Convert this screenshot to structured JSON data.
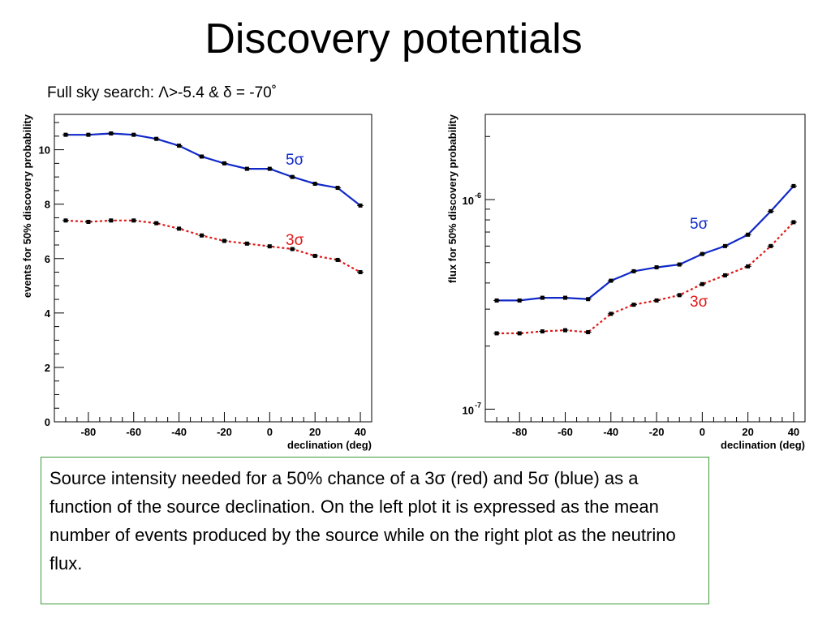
{
  "slide": {
    "title": "Discovery potentials",
    "subtitle": "Full sky search: Λ>-5.4 & δ = -70˚",
    "caption": "Source intensity needed for a 50% chance of a 3σ (red) and 5σ (blue) as a function of the source declination. On the left plot it is expressed as the mean number of events produced by the source while on the right plot as the neutrino flux."
  },
  "colors": {
    "five_sigma": "#1028c8",
    "three_sigma": "#e01818",
    "frame": "#000000",
    "caption_border": "#3a9a3a"
  },
  "chart_data": [
    {
      "type": "line",
      "xlabel": "declination (deg)",
      "ylabel": "events for 50% discovery probability",
      "xlim": [
        -95,
        45
      ],
      "ylim": [
        0,
        11.3
      ],
      "yscale": "linear",
      "x_ticks": [
        -80,
        -60,
        -40,
        -20,
        0,
        20,
        40
      ],
      "x_tick_labels": [
        "-80",
        "-60",
        "-40",
        "-20",
        "0",
        "20",
        "40"
      ],
      "y_ticks": [
        0,
        2,
        4,
        6,
        8,
        10
      ],
      "y_tick_labels": [
        "0",
        "2",
        "4",
        "6",
        "8",
        "10"
      ],
      "x": [
        -90,
        -80,
        -70,
        -60,
        -50,
        -40,
        -30,
        -20,
        -10,
        0,
        10,
        20,
        30,
        40
      ],
      "series": [
        {
          "name": "5σ",
          "style": "solid",
          "values": [
            10.55,
            10.55,
            10.6,
            10.55,
            10.4,
            10.15,
            9.75,
            9.5,
            9.3,
            9.3,
            9.0,
            8.75,
            8.6,
            7.95
          ]
        },
        {
          "name": "3σ",
          "style": "dotted",
          "values": [
            7.4,
            7.35,
            7.4,
            7.4,
            7.3,
            7.1,
            6.85,
            6.65,
            6.55,
            6.45,
            6.35,
            6.1,
            5.95,
            5.5
          ]
        }
      ],
      "grid": false,
      "legend": "inline labels"
    },
    {
      "type": "line",
      "xlabel": "declination (deg)",
      "ylabel": "flux for 50% discovery probability",
      "xlim": [
        -95,
        45
      ],
      "ylim": [
        8.7e-08,
        2.55e-06
      ],
      "yscale": "log",
      "x_ticks": [
        -80,
        -60,
        -40,
        -20,
        0,
        20,
        40
      ],
      "x_tick_labels": [
        "-80",
        "-60",
        "-40",
        "-20",
        "0",
        "20",
        "40"
      ],
      "y_ticks": [
        1e-07,
        1e-06
      ],
      "y_tick_labels": [
        [
          "10",
          "-7"
        ],
        [
          "10",
          "-6"
        ]
      ],
      "x": [
        -90,
        -80,
        -70,
        -60,
        -50,
        -40,
        -30,
        -20,
        -10,
        0,
        10,
        20,
        30,
        40
      ],
      "series": [
        {
          "name": "5σ",
          "style": "solid",
          "values": [
            3.3e-07,
            3.3e-07,
            3.4e-07,
            3.4e-07,
            3.35e-07,
            4.1e-07,
            4.55e-07,
            4.75e-07,
            4.9e-07,
            5.5e-07,
            6e-07,
            6.8e-07,
            8.8e-07,
            1.16e-06
          ]
        },
        {
          "name": "3σ",
          "style": "dotted",
          "values": [
            2.3e-07,
            2.3e-07,
            2.35e-07,
            2.38e-07,
            2.33e-07,
            2.85e-07,
            3.15e-07,
            3.3e-07,
            3.5e-07,
            3.95e-07,
            4.35e-07,
            4.8e-07,
            6e-07,
            7.8e-07
          ]
        }
      ],
      "grid": false,
      "legend": "inline labels"
    }
  ]
}
